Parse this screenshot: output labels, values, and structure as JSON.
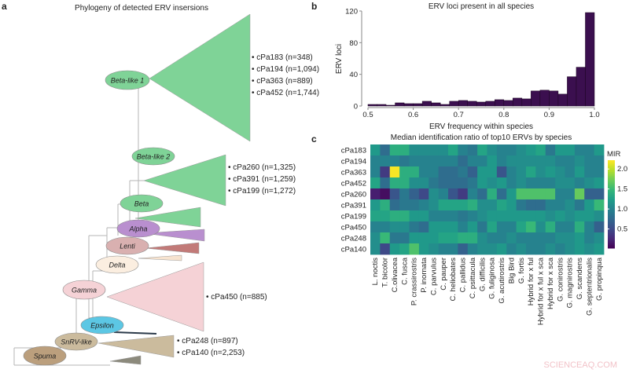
{
  "panel_labels": {
    "a": "a",
    "b": "b",
    "c": "c"
  },
  "phylogeny": {
    "title": "Phylogeny of detected ERV insersions",
    "clades": [
      {
        "name": "Beta-like 1",
        "color": "#7fd397",
        "erv_labels": [
          "cPa183 (n=348)",
          "cPa194 (n=1,094)",
          "cPa363 (n=889)",
          "cPa452 (n=1,744)"
        ]
      },
      {
        "name": "Beta-like 2",
        "color": "#7fd397",
        "erv_labels": [
          "cPa260 (n=1,325)",
          "cPa391 (n=1,259)",
          "cPa199 (n=1,272)"
        ]
      },
      {
        "name": "Beta",
        "color": "#7fd397",
        "erv_labels": []
      },
      {
        "name": "Alpha",
        "color": "#b98fcf",
        "erv_labels": []
      },
      {
        "name": "Lenti",
        "color": "#d9b0b0",
        "erv_labels": []
      },
      {
        "name": "Delta",
        "color": "#fbeee0",
        "erv_labels": []
      },
      {
        "name": "Gamma",
        "color": "#f5d2d6",
        "erv_labels": [
          "cPa450 (n=885)"
        ]
      },
      {
        "name": "Epsilon",
        "color": "#5cc7e4",
        "erv_labels": []
      },
      {
        "name": "SnRV-like",
        "color": "#cbbb9d",
        "erv_labels": [
          "cPa248 (n=897)",
          "cPa140 (n=2,253)"
        ]
      },
      {
        "name": "Spuma",
        "color": "#bb9f7d",
        "erv_labels": []
      }
    ]
  },
  "chart_data": [
    {
      "type": "bar",
      "title": "ERV loci present in all species",
      "xlabel": "ERV frequency within species",
      "ylabel": "ERV loci",
      "bin_width": 0.02,
      "bin_starts": [
        0.5,
        0.52,
        0.54,
        0.56,
        0.58,
        0.6,
        0.62,
        0.64,
        0.66,
        0.68,
        0.7,
        0.72,
        0.74,
        0.76,
        0.78,
        0.8,
        0.82,
        0.84,
        0.86,
        0.88,
        0.9,
        0.92,
        0.94,
        0.96,
        0.98
      ],
      "values": [
        2,
        2,
        1,
        4,
        3,
        3,
        6,
        4,
        2,
        6,
        7,
        6,
        5,
        6,
        8,
        7,
        10,
        9,
        19,
        20,
        19,
        15,
        37,
        49,
        118
      ],
      "xlim": [
        0.5,
        1.0
      ],
      "ylim": [
        0,
        120
      ],
      "xticks": [
        "0.5",
        "0.6",
        "0.7",
        "0.8",
        "0.9",
        "1.0"
      ],
      "yticks": [
        "0",
        "40",
        "80",
        "120"
      ],
      "color": "#3b0f4f"
    },
    {
      "type": "heatmap",
      "title": "Median identification ratio of top10 ERVs by species",
      "rows": [
        "cPa183",
        "cPa194",
        "cPa363",
        "cPa452",
        "cPa260",
        "cPa391",
        "cPa199",
        "cPa450",
        "cPa248",
        "cPa140"
      ],
      "columns": [
        "L. noctis",
        "T. bicolor",
        "C.olivacea",
        "C. fusca",
        "P. crassirostris",
        "P. inornata",
        "C. parvulus",
        "C. pauper",
        "C. heliobates",
        "C. pallidus",
        "C. psittacula",
        "G. difficilis",
        "G. fuliginosa",
        "G. acutirostris",
        "Big Bird",
        "G. fortis",
        "Hybrid for x ful",
        "Hybrid for x ful x sca",
        "Hybrid for x sca",
        "G. conirostris",
        "G. magnirostris",
        "G. scandens",
        "G. septentrionalis",
        "G. propinqua"
      ],
      "values": [
        [
          1.2,
          0.8,
          1.4,
          1.4,
          1.1,
          1.1,
          1.1,
          1.1,
          1.3,
          1.0,
          0.9,
          1.3,
          1.1,
          1.0,
          1.0,
          1.1,
          1.2,
          1.3,
          0.9,
          1.2,
          1.2,
          1.0,
          1.0,
          1.2
        ],
        [
          1.0,
          1.0,
          1.0,
          0.9,
          1.0,
          1.0,
          1.0,
          1.0,
          1.0,
          0.8,
          1.0,
          1.0,
          1.2,
          1.0,
          1.1,
          1.1,
          1.1,
          1.1,
          1.1,
          1.0,
          1.0,
          1.1,
          1.0,
          1.0
        ],
        [
          1.0,
          0.4,
          2.2,
          1.4,
          1.4,
          1.0,
          1.0,
          0.8,
          0.8,
          0.9,
          0.7,
          1.2,
          1.2,
          0.6,
          1.0,
          1.1,
          1.3,
          1.1,
          1.2,
          1.1,
          1.0,
          1.2,
          1.0,
          1.0
        ],
        [
          1.3,
          0.8,
          1.4,
          1.4,
          1.1,
          1.1,
          0.9,
          0.8,
          0.8,
          0.8,
          0.9,
          1.2,
          1.1,
          1.2,
          1.0,
          1.1,
          1.0,
          1.0,
          1.0,
          1.1,
          1.1,
          1.0,
          1.1,
          1.2
        ],
        [
          0.2,
          0.1,
          0.6,
          0.9,
          0.7,
          0.5,
          1.1,
          1.0,
          0.6,
          0.4,
          1.0,
          0.8,
          1.4,
          0.8,
          1.2,
          1.6,
          1.6,
          1.6,
          1.6,
          1.0,
          1.0,
          1.7,
          0.7,
          0.7
        ],
        [
          1.2,
          1.4,
          0.8,
          0.9,
          0.9,
          1.0,
          1.1,
          1.3,
          1.3,
          1.3,
          1.4,
          1.1,
          1.1,
          1.3,
          1.2,
          0.9,
          0.8,
          0.8,
          1.0,
          1.0,
          1.1,
          0.9,
          1.2,
          1.5
        ],
        [
          1.3,
          1.3,
          1.4,
          1.4,
          1.2,
          1.2,
          1.0,
          1.0,
          1.0,
          0.9,
          1.0,
          1.1,
          1.2,
          1.2,
          1.2,
          1.2,
          1.2,
          1.2,
          1.1,
          1.2,
          1.1,
          1.2,
          1.2,
          1.1
        ],
        [
          1.0,
          1.0,
          1.1,
          1.1,
          0.9,
          0.8,
          1.2,
          1.2,
          1.2,
          1.0,
          1.2,
          0.9,
          1.3,
          1.0,
          1.0,
          1.3,
          1.5,
          1.1,
          1.4,
          1.0,
          1.0,
          1.4,
          1.0,
          0.7
        ],
        [
          1.1,
          1.5,
          0.9,
          0.9,
          1.2,
          1.2,
          1.2,
          1.3,
          1.3,
          1.4,
          1.4,
          1.1,
          1.0,
          1.0,
          1.1,
          1.0,
          1.0,
          1.0,
          1.0,
          1.1,
          1.1,
          1.2,
          1.0,
          1.1
        ],
        [
          1.1,
          0.5,
          1.2,
          1.3,
          1.6,
          1.2,
          1.1,
          1.0,
          1.0,
          0.7,
          1.0,
          1.1,
          1.1,
          1.2,
          1.0,
          1.1,
          1.0,
          1.0,
          1.1,
          1.0,
          1.1,
          1.2,
          1.1,
          1.2
        ]
      ],
      "colorscale": "viridis",
      "color_range": [
        0.02,
        2.22
      ],
      "legend_title": "MIR",
      "legend_ticks": [
        "0.5",
        "1.0",
        "1.5",
        "2.0"
      ]
    }
  ],
  "watermark": "SCIENCEAQ.COM"
}
